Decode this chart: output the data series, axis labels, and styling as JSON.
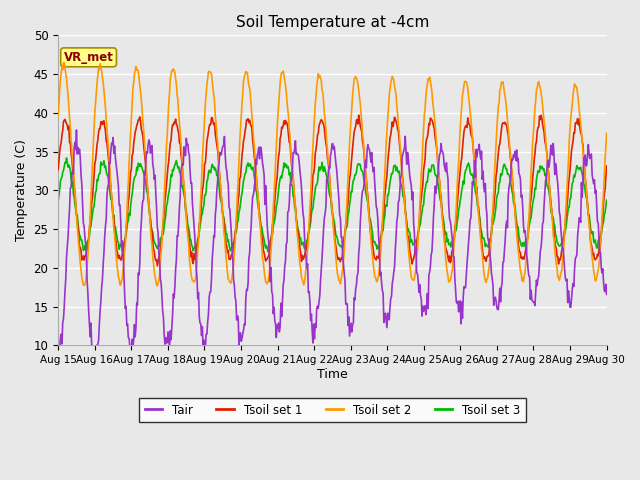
{
  "title": "Soil Temperature at -4cm",
  "xlabel": "Time",
  "ylabel": "Temperature (C)",
  "ylim": [
    10,
    50
  ],
  "background_color": "#e8e8e8",
  "plot_bg_color": "#e8e8e8",
  "colors": {
    "Tair": "#9933cc",
    "Tsoil1": "#dd2200",
    "Tsoil2": "#ff9900",
    "Tsoil3": "#00bb00"
  },
  "legend_labels": [
    "Tair",
    "Tsoil set 1",
    "Tsoil set 2",
    "Tsoil set 3"
  ],
  "annotation_text": "VR_met",
  "annotation_color": "#8B0000",
  "annotation_bg": "#ffff88",
  "xtick_labels": [
    "Aug 15",
    "Aug 16",
    "Aug 17",
    "Aug 18",
    "Aug 19",
    "Aug 20",
    "Aug 21",
    "Aug 22",
    "Aug 23",
    "Aug 24",
    "Aug 25",
    "Aug 26",
    "Aug 27",
    "Aug 28",
    "Aug 29",
    "Aug 30"
  ],
  "line_width": 1.2,
  "figsize": [
    6.4,
    4.8
  ],
  "dpi": 100
}
